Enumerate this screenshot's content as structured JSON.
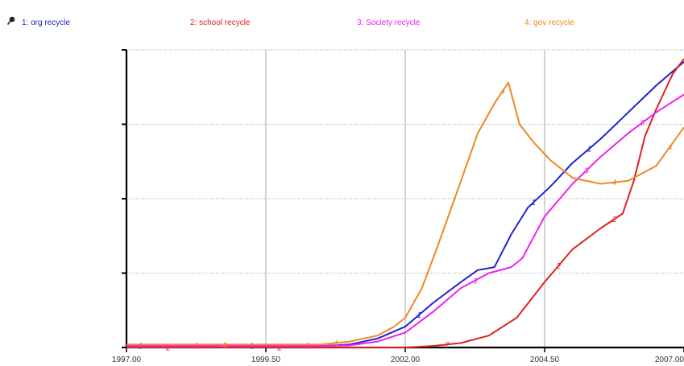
{
  "chart_data": {
    "type": "line",
    "title": "",
    "xlabel": "",
    "ylabel": "",
    "xlim": [
      1997.0,
      2007.0
    ],
    "ylim": [
      0,
      100
    ],
    "x_ticks": [
      "1997.00",
      "1999.50",
      "2002.00",
      "2004.50",
      "2007.00"
    ],
    "y_tick_count": 5,
    "grid": true,
    "legend": "top",
    "series": [
      {
        "name": "1: org recycle",
        "marker": "1",
        "color": "#2222cc",
        "x": [
          1997.0,
          2000.5,
          2001.0,
          2001.5,
          2002.0,
          2002.5,
          2003.0,
          2003.3,
          2003.6,
          2003.9,
          2004.2,
          2004.6,
          2005.0,
          2005.5,
          2006.0,
          2006.5,
          2007.0
        ],
        "values": [
          0.5,
          0.5,
          1,
          3,
          7,
          15,
          22,
          26,
          27,
          38,
          47,
          54,
          62,
          70,
          79,
          88,
          96
        ]
      },
      {
        "name": "2: school recycle",
        "marker": "2",
        "color": "#dd2222",
        "x": [
          1997.0,
          2002.0,
          2002.5,
          2003.0,
          2003.5,
          2004.0,
          2004.5,
          2005.0,
          2005.5,
          2005.9,
          2006.1,
          2006.3,
          2006.5,
          2006.8,
          2007.0
        ],
        "values": [
          0,
          0,
          0.5,
          1.5,
          4,
          10,
          22,
          33,
          40,
          45,
          56,
          71,
          80,
          92,
          97
        ]
      },
      {
        "name": "3: Society recycle",
        "marker": "3",
        "color": "#ee22ee",
        "x": [
          1997.0,
          2000.5,
          2001.0,
          2001.5,
          2002.0,
          2002.5,
          2003.0,
          2003.5,
          2003.9,
          2004.1,
          2004.5,
          2005.0,
          2005.5,
          2006.0,
          2006.5,
          2007.0
        ],
        "values": [
          0.5,
          0.5,
          0.7,
          2,
          5,
          12,
          20,
          25,
          27,
          30,
          44,
          55,
          64,
          72,
          79,
          85
        ]
      },
      {
        "name": "4: gov recycle",
        "marker": "4",
        "color": "#ee8822",
        "x": [
          1997.0,
          2000.5,
          2001.0,
          2001.5,
          2001.8,
          2002.0,
          2002.3,
          2002.6,
          2003.0,
          2003.3,
          2003.6,
          2003.85,
          2004.05,
          2004.3,
          2004.6,
          2005.0,
          2005.5,
          2006.0,
          2006.5,
          2007.0
        ],
        "values": [
          1,
          1,
          2,
          4,
          7,
          10,
          20,
          35,
          56,
          72,
          82,
          89,
          75,
          69,
          63,
          57,
          55,
          56,
          61,
          74
        ]
      }
    ]
  }
}
